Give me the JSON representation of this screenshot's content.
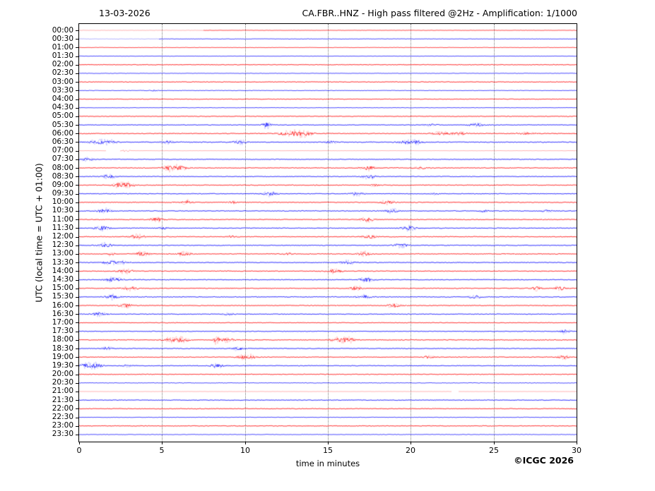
{
  "header": {
    "date": "13-03-2026",
    "title": "CA.FBR..HNZ - High pass filtered @2Hz - Amplification: 1/1000"
  },
  "footer": {
    "credit": "©ICGC 2026"
  },
  "chart_data": {
    "type": "line",
    "subtype": "helicorder-day-plot",
    "title": "CA.FBR..HNZ - High pass filtered @2Hz - Amplification: 1/1000",
    "date": "13-03-2026",
    "xlabel": "time in minutes",
    "ylabel": "UTC (local time = UTC + 01:00)",
    "xlim": [
      0,
      30
    ],
    "xticks": [
      0,
      5,
      10,
      15,
      20,
      25,
      30
    ],
    "grid": "vertical dotted lines every 5 minutes",
    "minutes_per_row": 30,
    "colors": {
      "hour_trace": "#ff0000",
      "half_hour_trace": "#0000ff",
      "grid": "#808080"
    },
    "rows": [
      {
        "time": "00:00",
        "color": "red",
        "noise": 0.25,
        "light_until": 7.5,
        "bursts": []
      },
      {
        "time": "00:30",
        "color": "blue",
        "noise": 0.3,
        "light_until": 4.8,
        "bursts": []
      },
      {
        "time": "01:00",
        "color": "red",
        "noise": 0.3,
        "bursts": []
      },
      {
        "time": "01:30",
        "color": "blue",
        "noise": 0.25,
        "bursts": []
      },
      {
        "time": "02:00",
        "color": "red",
        "noise": 0.5,
        "bursts": []
      },
      {
        "time": "02:30",
        "color": "blue",
        "noise": 0.3,
        "bursts": []
      },
      {
        "time": "03:00",
        "color": "red",
        "noise": 0.5,
        "bursts": []
      },
      {
        "time": "03:30",
        "color": "blue",
        "noise": 0.35,
        "bursts": [
          [
            4.6,
            0.8,
            0.2
          ]
        ]
      },
      {
        "time": "04:00",
        "color": "red",
        "noise": 0.45,
        "bursts": []
      },
      {
        "time": "04:30",
        "color": "blue",
        "noise": 0.28,
        "bursts": []
      },
      {
        "time": "05:00",
        "color": "red",
        "noise": 0.5,
        "bursts": []
      },
      {
        "time": "05:30",
        "color": "blue",
        "noise": 0.45,
        "bursts": [
          [
            11.3,
            3.5,
            0.18
          ],
          [
            21.2,
            1.0,
            0.3
          ],
          [
            24.0,
            1.6,
            0.35
          ]
        ]
      },
      {
        "time": "06:00",
        "color": "red",
        "noise": 0.55,
        "bursts": [
          [
            12.8,
            2.6,
            0.5
          ],
          [
            13.6,
            2.0,
            0.35
          ],
          [
            21.8,
            1.4,
            0.5
          ],
          [
            23.0,
            1.2,
            0.3
          ],
          [
            27.0,
            1.1,
            0.3
          ]
        ]
      },
      {
        "time": "06:30",
        "color": "blue",
        "noise": 0.6,
        "bursts": [
          [
            1.2,
            2.2,
            0.4
          ],
          [
            1.9,
            1.8,
            0.25
          ],
          [
            5.3,
            1.4,
            0.25
          ],
          [
            9.7,
            1.8,
            0.3
          ],
          [
            15.2,
            1.2,
            0.25
          ],
          [
            19.8,
            1.7,
            0.35
          ],
          [
            20.4,
            1.4,
            0.2
          ]
        ]
      },
      {
        "time": "07:00",
        "color": "red",
        "noise": 0.18,
        "light": true,
        "gaps": [
          [
            1.65,
            2.45
          ]
        ],
        "bursts": [
          [
            2.75,
            1.4,
            0.22
          ]
        ]
      },
      {
        "time": "07:30",
        "color": "blue",
        "noise": 0.5,
        "bursts": [
          [
            0.5,
            1.4,
            0.3
          ]
        ]
      },
      {
        "time": "08:00",
        "color": "red",
        "noise": 0.55,
        "bursts": [
          [
            5.4,
            2.3,
            0.25
          ],
          [
            6.0,
            2.3,
            0.35
          ],
          [
            17.4,
            2.4,
            0.3
          ],
          [
            20.6,
            1.1,
            0.25
          ]
        ]
      },
      {
        "time": "08:30",
        "color": "blue",
        "noise": 0.5,
        "bursts": [
          [
            1.8,
            1.9,
            0.28
          ],
          [
            17.5,
            2.1,
            0.3
          ]
        ]
      },
      {
        "time": "09:00",
        "color": "red",
        "noise": 0.55,
        "bursts": [
          [
            2.4,
            2.1,
            0.25
          ],
          [
            2.9,
            2.1,
            0.3
          ],
          [
            17.8,
            1.0,
            0.2
          ]
        ]
      },
      {
        "time": "09:30",
        "color": "blue",
        "noise": 0.5,
        "bursts": [
          [
            11.5,
            2.2,
            0.28
          ],
          [
            16.7,
            1.9,
            0.28
          ],
          [
            21.4,
            0.9,
            0.2
          ]
        ]
      },
      {
        "time": "10:00",
        "color": "red",
        "noise": 0.55,
        "bursts": [
          [
            6.5,
            2.1,
            0.22
          ],
          [
            18.6,
            1.9,
            0.3
          ],
          [
            9.3,
            1.0,
            0.2
          ]
        ]
      },
      {
        "time": "10:30",
        "color": "blue",
        "noise": 0.55,
        "bursts": [
          [
            1.5,
            2.2,
            0.28
          ],
          [
            18.8,
            2.1,
            0.3
          ],
          [
            24.4,
            1.0,
            0.2
          ],
          [
            28.2,
            0.9,
            0.2
          ]
        ]
      },
      {
        "time": "11:00",
        "color": "red",
        "noise": 0.55,
        "bursts": [
          [
            4.7,
            2.1,
            0.25
          ],
          [
            17.4,
            2.1,
            0.3
          ]
        ]
      },
      {
        "time": "11:30",
        "color": "blue",
        "noise": 0.55,
        "bursts": [
          [
            1.4,
            2.2,
            0.3
          ],
          [
            19.9,
            2.3,
            0.3
          ],
          [
            5.1,
            1.0,
            0.2
          ]
        ]
      },
      {
        "time": "12:00",
        "color": "red",
        "noise": 0.55,
        "bursts": [
          [
            3.5,
            2.1,
            0.3
          ],
          [
            17.5,
            1.7,
            0.3
          ],
          [
            9.2,
            1.0,
            0.2
          ]
        ]
      },
      {
        "time": "12:30",
        "color": "blue",
        "noise": 0.55,
        "bursts": [
          [
            1.6,
            2.1,
            0.28
          ],
          [
            19.4,
            1.9,
            0.28
          ]
        ]
      },
      {
        "time": "13:00",
        "color": "red",
        "noise": 0.55,
        "bursts": [
          [
            1.9,
            1.4,
            0.2
          ],
          [
            3.8,
            2.2,
            0.3
          ],
          [
            6.3,
            2.1,
            0.28
          ],
          [
            17.2,
            2.1,
            0.28
          ],
          [
            12.6,
            0.9,
            0.2
          ]
        ]
      },
      {
        "time": "13:30",
        "color": "blue",
        "noise": 0.55,
        "bursts": [
          [
            1.9,
            2.2,
            0.3
          ],
          [
            2.6,
            1.4,
            0.2
          ],
          [
            16.2,
            1.9,
            0.28
          ]
        ]
      },
      {
        "time": "14:00",
        "color": "red",
        "noise": 0.55,
        "bursts": [
          [
            2.8,
            2.2,
            0.3
          ],
          [
            15.4,
            1.9,
            0.28
          ]
        ]
      },
      {
        "time": "14:30",
        "color": "blue",
        "noise": 0.55,
        "bursts": [
          [
            2.1,
            2.2,
            0.35
          ],
          [
            17.3,
            2.1,
            0.28
          ]
        ]
      },
      {
        "time": "15:00",
        "color": "red",
        "noise": 0.55,
        "bursts": [
          [
            3.1,
            2.2,
            0.28
          ],
          [
            16.7,
            1.9,
            0.28
          ],
          [
            27.6,
            1.7,
            0.22
          ],
          [
            29.0,
            2.1,
            0.22
          ]
        ]
      },
      {
        "time": "15:30",
        "color": "blue",
        "noise": 0.55,
        "bursts": [
          [
            2.0,
            2.2,
            0.28
          ],
          [
            17.2,
            1.9,
            0.28
          ],
          [
            23.9,
            1.7,
            0.25
          ]
        ]
      },
      {
        "time": "16:00",
        "color": "red",
        "noise": 0.55,
        "bursts": [
          [
            2.8,
            2.2,
            0.28
          ],
          [
            19.0,
            2.1,
            0.28
          ]
        ]
      },
      {
        "time": "16:30",
        "color": "blue",
        "noise": 0.5,
        "bursts": [
          [
            1.2,
            2.1,
            0.3
          ],
          [
            9.0,
            1.1,
            0.2
          ]
        ]
      },
      {
        "time": "17:00",
        "color": "red",
        "noise": 0.45,
        "bursts": []
      },
      {
        "time": "17:30",
        "color": "blue",
        "noise": 0.45,
        "bursts": [
          [
            29.3,
            1.9,
            0.22
          ]
        ]
      },
      {
        "time": "18:00",
        "color": "red",
        "noise": 0.55,
        "bursts": [
          [
            5.5,
            1.9,
            0.35
          ],
          [
            6.2,
            2.1,
            0.28
          ],
          [
            8.3,
            3.8,
            0.12
          ],
          [
            8.9,
            1.9,
            0.28
          ],
          [
            15.7,
            2.4,
            0.35
          ],
          [
            16.3,
            1.9,
            0.25
          ]
        ]
      },
      {
        "time": "18:30",
        "color": "blue",
        "noise": 0.5,
        "bursts": [
          [
            1.7,
            1.4,
            0.22
          ],
          [
            9.6,
            1.7,
            0.28
          ]
        ]
      },
      {
        "time": "19:00",
        "color": "red",
        "noise": 0.5,
        "bursts": [
          [
            9.9,
            2.2,
            0.25
          ],
          [
            10.4,
            1.8,
            0.2
          ],
          [
            21.1,
            1.4,
            0.22
          ],
          [
            29.2,
            2.0,
            0.22
          ]
        ]
      },
      {
        "time": "19:30",
        "color": "blue",
        "noise": 0.5,
        "bursts": [
          [
            0.5,
            2.2,
            0.35
          ],
          [
            1.1,
            1.7,
            0.25
          ],
          [
            8.3,
            1.9,
            0.28
          ],
          [
            2.9,
            1.1,
            0.2
          ]
        ]
      },
      {
        "time": "20:00",
        "color": "red",
        "noise": 0.5,
        "bursts": []
      },
      {
        "time": "20:30",
        "color": "blue",
        "noise": 0.4,
        "bursts": []
      },
      {
        "time": "21:00",
        "color": "red",
        "noise": 0.18,
        "light": true,
        "gaps": [
          [
            22.5,
            22.85
          ]
        ],
        "bursts": []
      },
      {
        "time": "21:30",
        "color": "blue",
        "noise": 0.5,
        "bursts": []
      },
      {
        "time": "22:00",
        "color": "red",
        "noise": 0.5,
        "bursts": []
      },
      {
        "time": "22:30",
        "color": "blue",
        "noise": 0.33,
        "bursts": []
      },
      {
        "time": "23:00",
        "color": "red",
        "noise": 0.5,
        "bursts": []
      },
      {
        "time": "23:30",
        "color": "blue",
        "noise": 0.35,
        "bursts": []
      }
    ]
  }
}
